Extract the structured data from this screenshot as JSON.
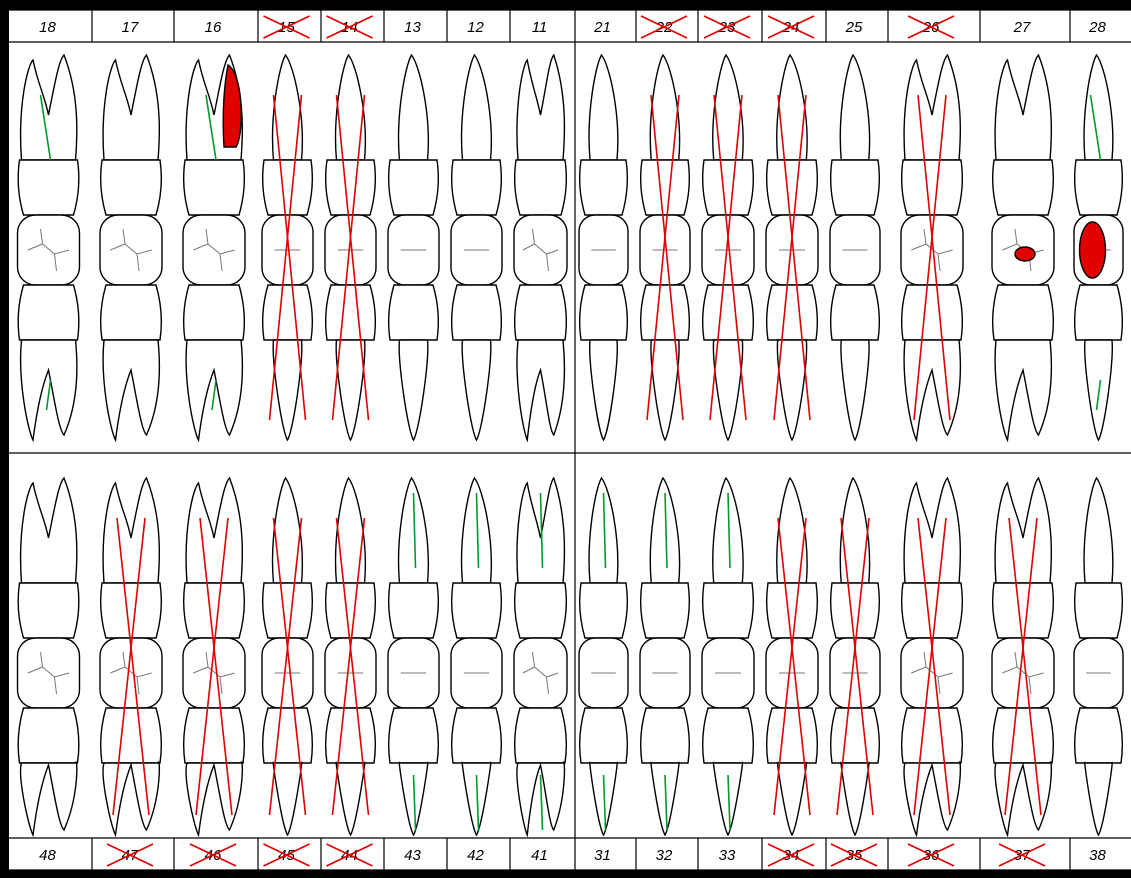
{
  "colors": {
    "background": "#000000",
    "panel": "#ffffff",
    "outline": "#000000",
    "extraction_mark": "#e00000",
    "root_canal_fill": "#009a2e",
    "restoration": "#e00000"
  },
  "upper_row": [
    {
      "number": "18",
      "status": "present",
      "root_canal": true,
      "restoration": false
    },
    {
      "number": "17",
      "status": "present",
      "root_canal": false,
      "restoration": false
    },
    {
      "number": "16",
      "status": "present",
      "root_canal": true,
      "restoration": true
    },
    {
      "number": "15",
      "status": "missing",
      "root_canal": false,
      "restoration": false
    },
    {
      "number": "14",
      "status": "missing",
      "root_canal": false,
      "restoration": false
    },
    {
      "number": "13",
      "status": "present",
      "root_canal": false,
      "restoration": false
    },
    {
      "number": "12",
      "status": "present",
      "root_canal": false,
      "restoration": false
    },
    {
      "number": "11",
      "status": "present",
      "root_canal": false,
      "restoration": false
    },
    {
      "number": "21",
      "status": "present",
      "root_canal": false,
      "restoration": false
    },
    {
      "number": "22",
      "status": "missing",
      "root_canal": false,
      "restoration": false
    },
    {
      "number": "23",
      "status": "missing",
      "root_canal": false,
      "restoration": false
    },
    {
      "number": "24",
      "status": "missing",
      "root_canal": false,
      "restoration": false
    },
    {
      "number": "25",
      "status": "present",
      "root_canal": false,
      "restoration": false
    },
    {
      "number": "26",
      "status": "missing",
      "root_canal": false,
      "restoration": false
    },
    {
      "number": "27",
      "status": "present",
      "root_canal": false,
      "restoration": true
    },
    {
      "number": "28",
      "status": "present",
      "root_canal": true,
      "restoration": true
    }
  ],
  "lower_row": [
    {
      "number": "48",
      "status": "present",
      "root_canal": false,
      "restoration": false
    },
    {
      "number": "47",
      "status": "missing",
      "root_canal": false,
      "restoration": false
    },
    {
      "number": "46",
      "status": "missing",
      "root_canal": false,
      "restoration": false
    },
    {
      "number": "45",
      "status": "missing",
      "root_canal": false,
      "restoration": false
    },
    {
      "number": "44",
      "status": "missing",
      "root_canal": false,
      "restoration": false
    },
    {
      "number": "43",
      "status": "present",
      "root_canal": true,
      "restoration": false
    },
    {
      "number": "42",
      "status": "present",
      "root_canal": true,
      "restoration": false
    },
    {
      "number": "41",
      "status": "present",
      "root_canal": true,
      "restoration": false
    },
    {
      "number": "31",
      "status": "present",
      "root_canal": true,
      "restoration": false
    },
    {
      "number": "32",
      "status": "present",
      "root_canal": true,
      "restoration": false
    },
    {
      "number": "33",
      "status": "present",
      "root_canal": true,
      "restoration": false
    },
    {
      "number": "34",
      "status": "missing",
      "root_canal": false,
      "restoration": false
    },
    {
      "number": "35",
      "status": "missing",
      "root_canal": false,
      "restoration": false
    },
    {
      "number": "36",
      "status": "missing",
      "root_canal": false,
      "restoration": false
    },
    {
      "number": "37",
      "status": "missing",
      "root_canal": false,
      "restoration": false
    },
    {
      "number": "38",
      "status": "present",
      "root_canal": false,
      "restoration": false
    }
  ]
}
